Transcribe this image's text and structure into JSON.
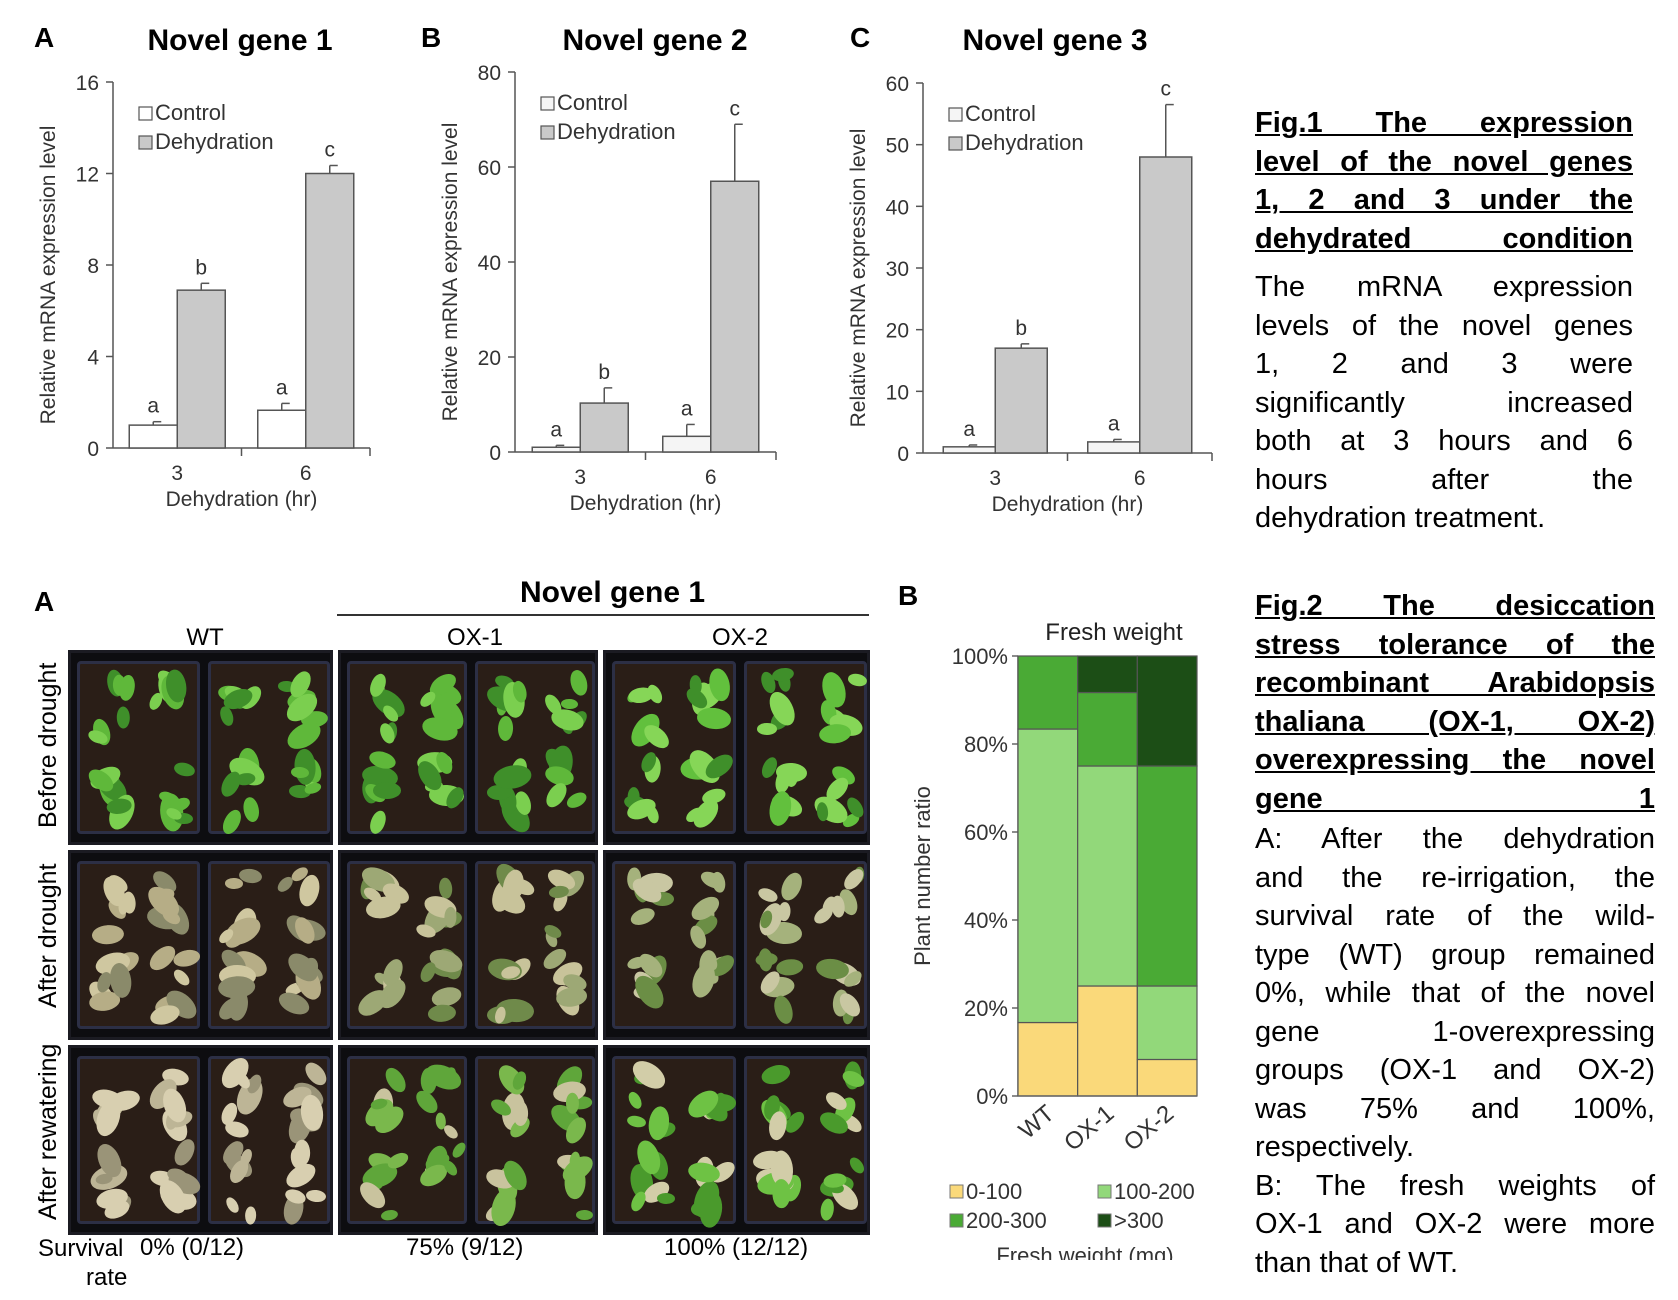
{
  "fig1": {
    "charts": [
      {
        "panel": "A",
        "title": "Novel gene 1"
      },
      {
        "panel": "B",
        "title": "Novel gene 2"
      },
      {
        "panel": "C",
        "title": "Novel gene 3"
      }
    ],
    "caption": {
      "title_lines": [
        "Fig.1 The expression",
        "level of the novel genes",
        "1, 2 and 3 under the",
        "dehydrated condition"
      ],
      "body_lines": [
        "The mRNA expression",
        "levels of the novel genes",
        "1, 2 and 3 were",
        "significantly increased",
        "both at 3 hours and 6",
        "hours after the",
        "dehydration treatment."
      ]
    }
  },
  "fig2": {
    "panel_a_letter": "A",
    "panel_b_letter": "B",
    "gene_header": "Novel gene 1",
    "columns": [
      "WT",
      "OX-1",
      "OX-2"
    ],
    "rows": [
      "Before drought",
      "After drought",
      "After rewatering"
    ],
    "survival_label": [
      "Survival",
      "rate"
    ],
    "survival_values": [
      "0% (0/12)",
      "75% (9/12)",
      "100% (12/12)"
    ],
    "caption": {
      "title_lines": [
        "Fig.2 The desiccation",
        "stress tolerance of the",
        "recombinant Arabidopsis",
        "thaliana (OX-1, OX-2)",
        "overexpressing the novel",
        "gene 1"
      ],
      "body_lines": [
        "A: After the dehydration",
        "and the re-irrigation, the",
        "survival rate of the wild-",
        "type (WT) group remained",
        "0%, while that of the novel",
        "gene 1-overexpressing",
        "groups (OX-1 and OX-2)",
        "was 75% and 100%,",
        "respectively.",
        "B: The fresh weights of",
        "OX-1 and OX-2 were more",
        "than that of WT."
      ]
    }
  },
  "chart_data": [
    {
      "type": "bar",
      "title": "Novel gene 1",
      "categories": [
        "3",
        "6"
      ],
      "xlabel": "Dehydration (hr)",
      "ylabel": "Relative mRNA expression level",
      "ylim": [
        0,
        16
      ],
      "yticks": [
        "0",
        "4",
        "8",
        "12",
        "16"
      ],
      "legend_position": "top-left",
      "series": [
        {
          "name": "Control",
          "color": "#ffffff",
          "values": [
            1.0,
            1.65
          ],
          "errors": [
            0.15,
            0.3
          ],
          "letters": [
            "a",
            "a"
          ]
        },
        {
          "name": "Dehydration",
          "color": "#c9c9c9",
          "values": [
            6.9,
            12.0
          ],
          "errors": [
            0.3,
            0.35
          ],
          "letters": [
            "b",
            "c"
          ]
        }
      ]
    },
    {
      "type": "bar",
      "title": "Novel gene 2",
      "categories": [
        "3",
        "6"
      ],
      "xlabel": "Dehydration (hr)",
      "ylabel": "Relative mRNA expression level",
      "ylim": [
        0,
        80
      ],
      "yticks": [
        "0",
        "20",
        "40",
        "60",
        "80"
      ],
      "legend_position": "top-left",
      "series": [
        {
          "name": "Control",
          "color": "#f5f5f5",
          "values": [
            1.0,
            3.3
          ],
          "errors": [
            0.4,
            2.5
          ],
          "letters": [
            "a",
            "a"
          ]
        },
        {
          "name": "Dehydration",
          "color": "#c9c9c9",
          "values": [
            10.3,
            57.0
          ],
          "errors": [
            3.2,
            12.0
          ],
          "letters": [
            "b",
            "c"
          ]
        }
      ]
    },
    {
      "type": "bar",
      "title": "Novel gene 3",
      "categories": [
        "3",
        "6"
      ],
      "xlabel": "Dehydration (hr)",
      "ylabel": "Relative mRNA expression level",
      "ylim": [
        0,
        60
      ],
      "yticks": [
        "0",
        "10",
        "20",
        "30",
        "40",
        "50",
        "60"
      ],
      "legend_position": "top-left",
      "series": [
        {
          "name": "Control",
          "color": "#f5f5f5",
          "values": [
            1.0,
            1.8
          ],
          "errors": [
            0.3,
            0.4
          ],
          "letters": [
            "a",
            "a"
          ]
        },
        {
          "name": "Dehydration",
          "color": "#c9c9c9",
          "values": [
            17.0,
            48.0
          ],
          "errors": [
            0.7,
            8.5
          ],
          "letters": [
            "b",
            "c"
          ]
        }
      ]
    },
    {
      "type": "bar",
      "stacked": true,
      "title": "Fresh weight",
      "categories": [
        "WT",
        "OX-1",
        "OX-2"
      ],
      "xlabel": "Fresh weight (mg)",
      "ylabel": "Plant number ratio",
      "ylim": [
        0,
        100
      ],
      "yticks": [
        "0%",
        "20%",
        "40%",
        "60%",
        "80%",
        "100%"
      ],
      "legend_position": "bottom",
      "series": [
        {
          "name": "0-100",
          "color": "#fad97a",
          "values": [
            16.7,
            25.0,
            8.3
          ]
        },
        {
          "name": "100-200",
          "color": "#92d87a",
          "values": [
            66.7,
            50.0,
            16.7
          ]
        },
        {
          "name": "200-300",
          "color": "#4aaa35",
          "values": [
            16.6,
            16.7,
            50.0
          ]
        },
        {
          "name": ">300",
          "color": "#1c4e16",
          "values": [
            0,
            8.3,
            25.0
          ]
        }
      ]
    }
  ]
}
